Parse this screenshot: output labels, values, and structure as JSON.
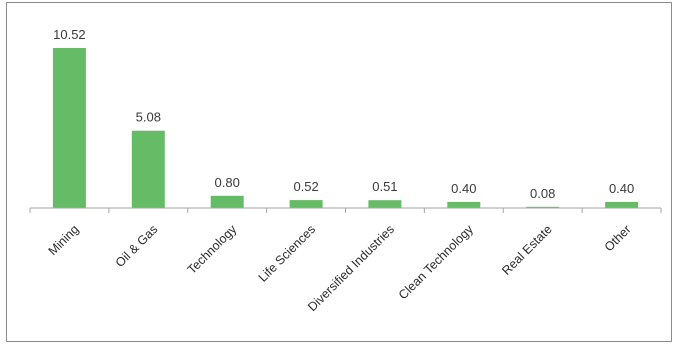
{
  "chart_data": {
    "type": "bar",
    "title": "",
    "xlabel": "",
    "ylabel": "",
    "categories": [
      "Mining",
      "Oil & Gas",
      "Technology",
      "Life Sciences",
      "Diversified Industries",
      "Clean Technology",
      "Real Estate",
      "Other"
    ],
    "values": [
      10.52,
      5.08,
      0.8,
      0.52,
      0.51,
      0.4,
      0.08,
      0.4
    ],
    "data_labels": [
      "10.52",
      "5.08",
      "0.80",
      "0.52",
      "0.51",
      "0.40",
      "0.08",
      "0.40"
    ],
    "ylim": [
      0,
      11.5
    ],
    "bar_color": "#66bb66",
    "axis_color": "#a6a6a6",
    "grid": false,
    "legend": "none"
  }
}
